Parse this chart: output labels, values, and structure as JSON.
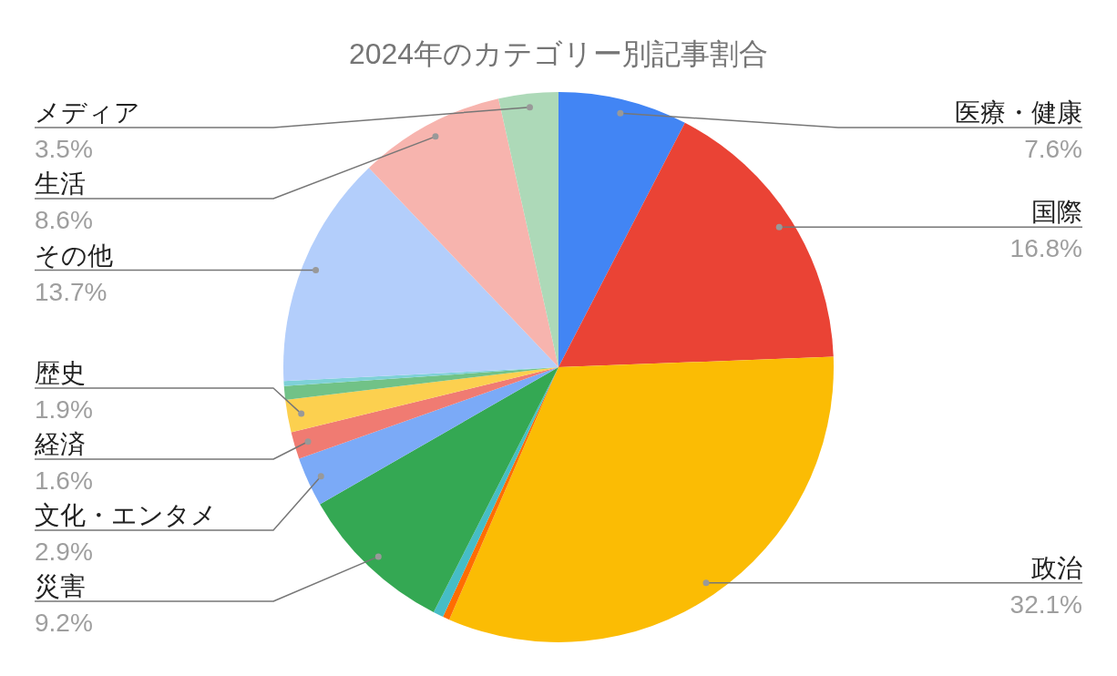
{
  "chart_data": {
    "type": "pie",
    "title": "2024年のカテゴリー別記事割合",
    "categories": [
      "医療・健康",
      "国際",
      "政治",
      null,
      null,
      "災害",
      "文化・エンタメ",
      "経済",
      "歴史",
      null,
      null,
      "その他",
      "生活",
      "メディア"
    ],
    "values": [
      7.6,
      16.8,
      32.1,
      0.4,
      0.6,
      9.2,
      2.9,
      1.6,
      1.9,
      0.8,
      0.3,
      13.7,
      8.6,
      3.5
    ],
    "value_labels": [
      "7.6%",
      "16.8%",
      "32.1%",
      null,
      null,
      "9.2%",
      "2.9%",
      "1.6%",
      "1.9%",
      null,
      null,
      "13.7%",
      "8.6%",
      "3.5%"
    ],
    "colors": [
      "#4285f4",
      "#ea4335",
      "#fbbc04",
      "#ff6d01",
      "#46bdc6",
      "#34a853",
      "#7baaf7",
      "#f07b72",
      "#fcd04f",
      "#71c287",
      "#7ed1d7",
      "#b3cefb",
      "#f7b4ae",
      "#add9b8"
    ]
  }
}
